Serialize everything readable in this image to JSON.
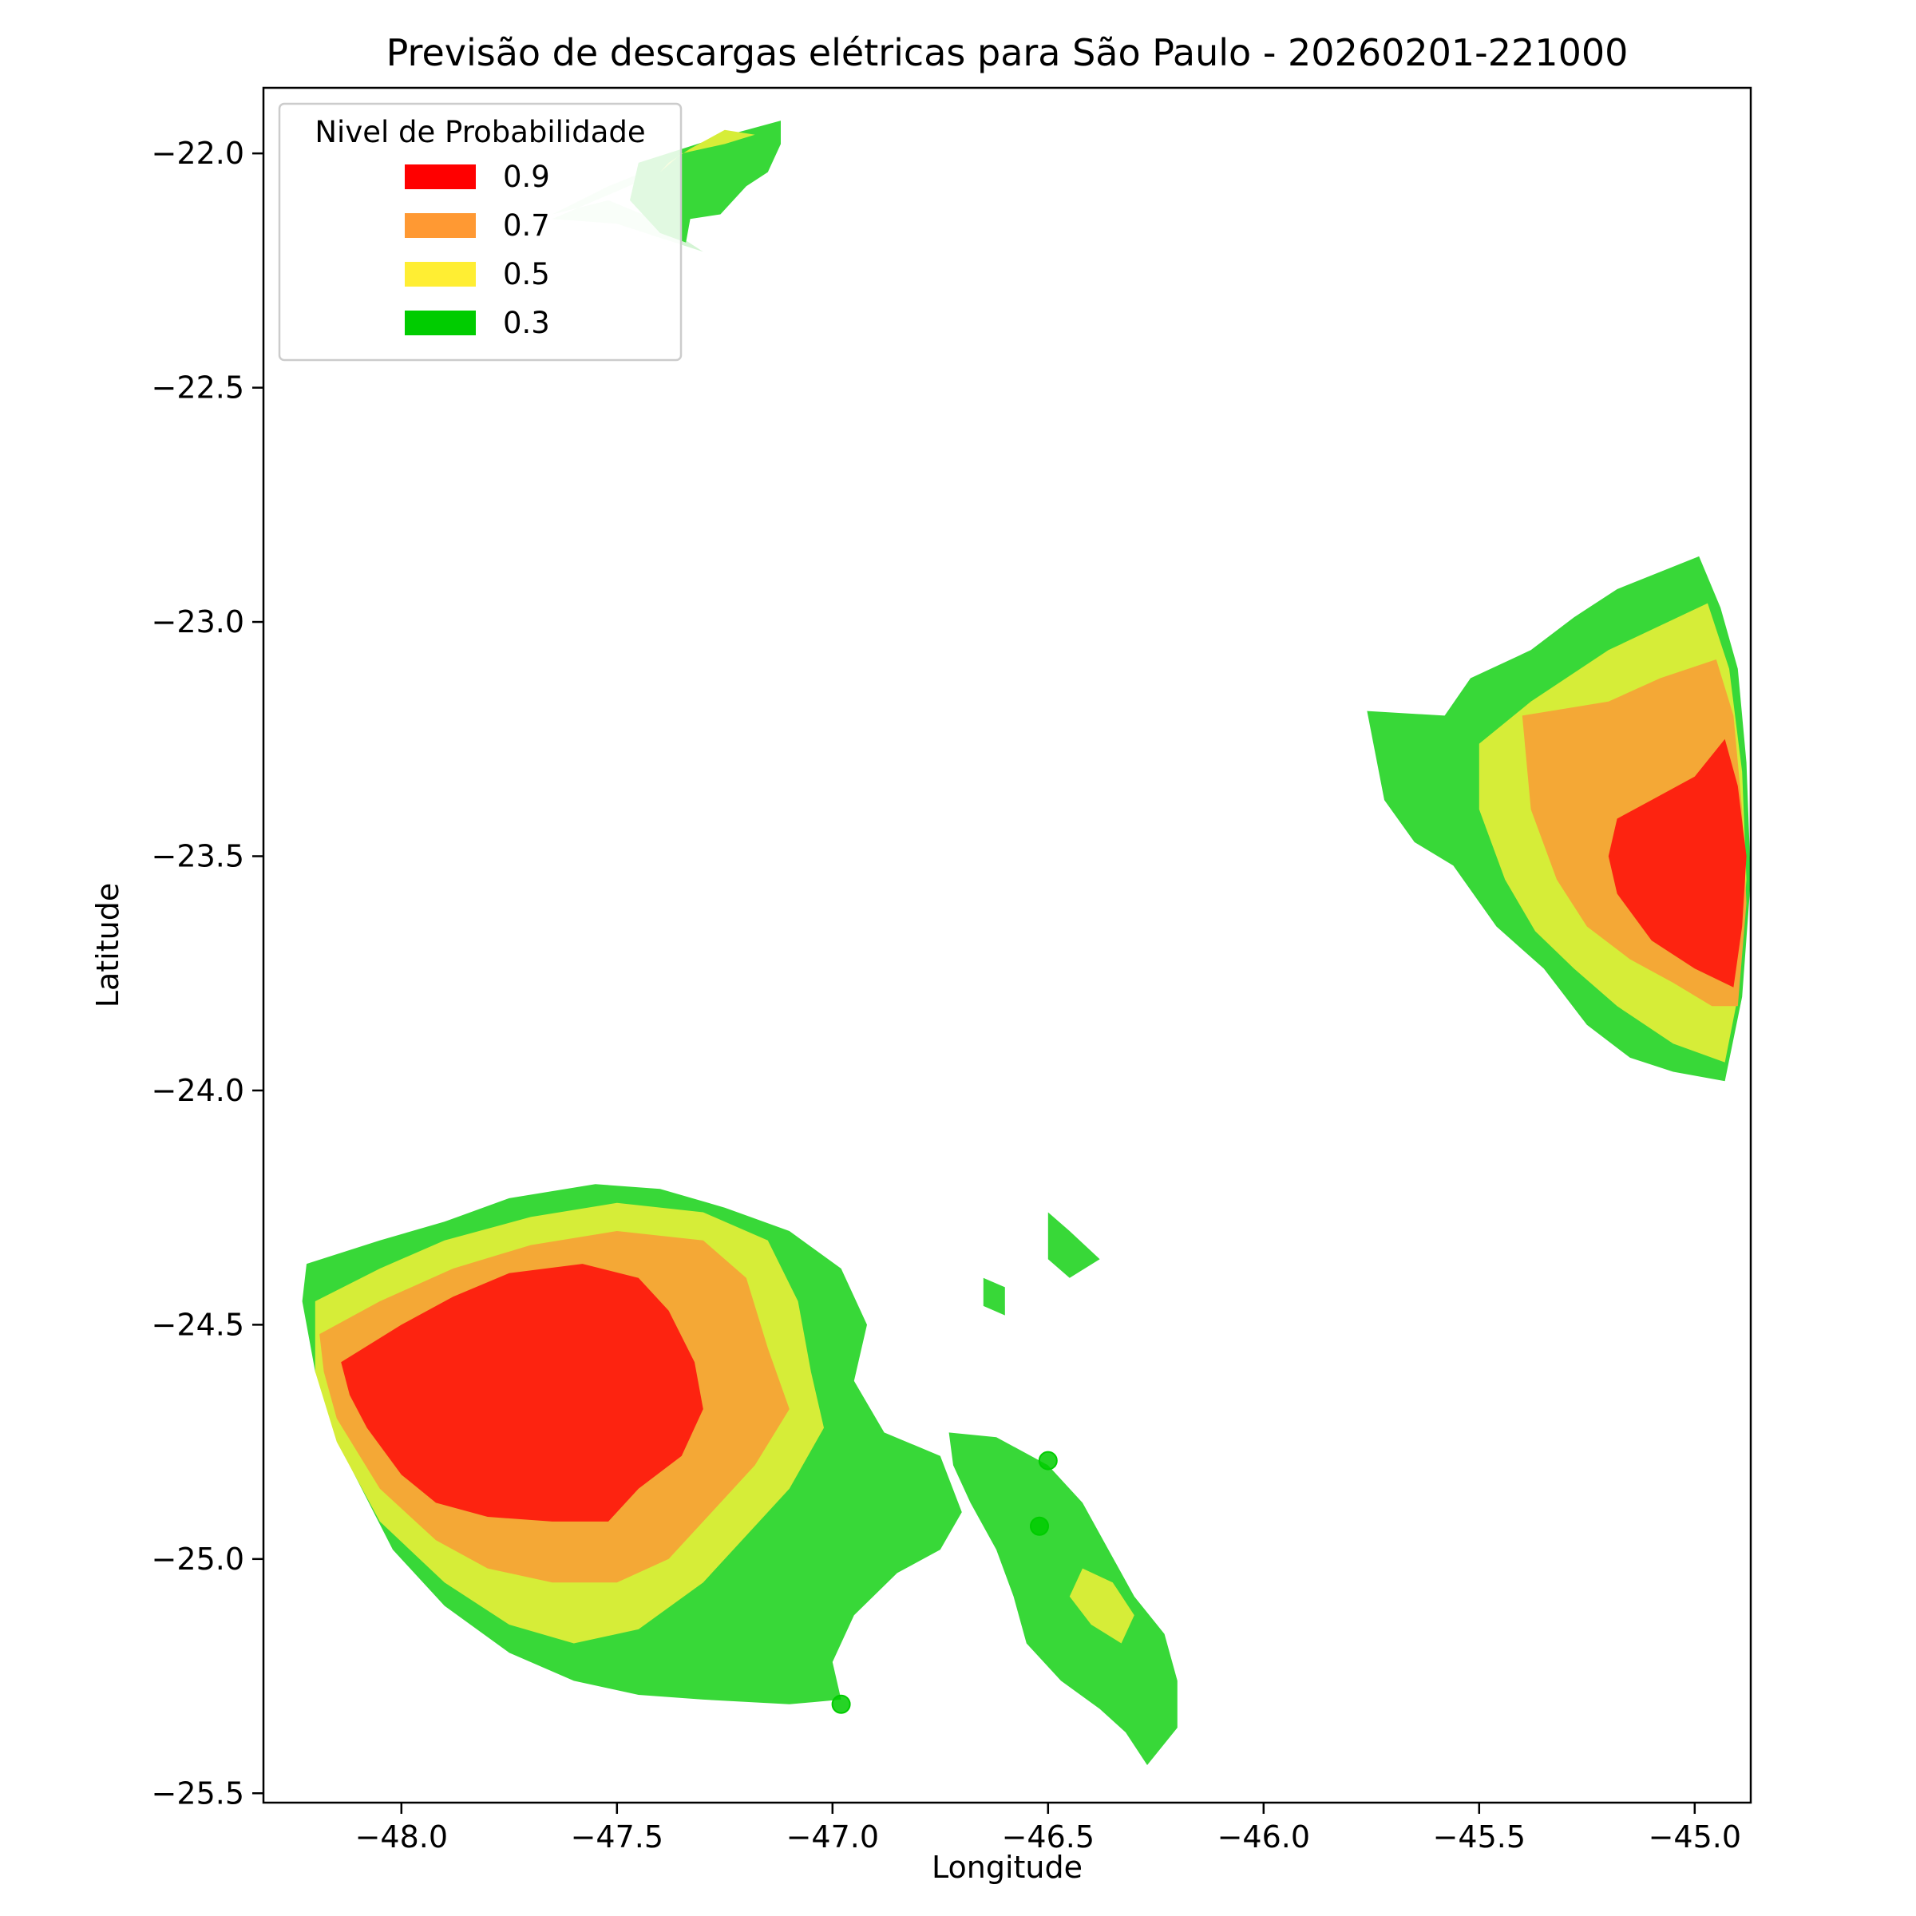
{
  "chart_data": {
    "type": "contour",
    "title": "Previsão de descargas elétricas para São Paulo - 20260201-221000",
    "xlabel": "Longitude",
    "ylabel": "Latitude",
    "xlim": [
      -48.32,
      -44.87
    ],
    "ylim": [
      -25.52,
      -21.86
    ],
    "xticks": [
      -48.0,
      -47.5,
      -47.0,
      -46.5,
      -46.0,
      -45.5,
      -45.0
    ],
    "xtick_labels": [
      "−48.0",
      "−47.5",
      "−47.0",
      "−46.5",
      "−46.0",
      "−45.5",
      "−45.0"
    ],
    "yticks": [
      -22.0,
      -22.5,
      -23.0,
      -23.5,
      -24.0,
      -24.5,
      -25.0,
      -25.5
    ],
    "ytick_labels": [
      "−22.0",
      "−22.5",
      "−23.0",
      "−23.5",
      "−24.0",
      "−24.5",
      "−25.0",
      "−25.5"
    ],
    "grid": false,
    "legend": {
      "title": "Nivel de Probabilidade",
      "placement": "top-left",
      "entries": [
        {
          "label": "0.9",
          "color": "#ff0000"
        },
        {
          "label": "0.7",
          "color": "#ff9933"
        },
        {
          "label": "0.5",
          "color": "#ffee33"
        },
        {
          "label": "0.3",
          "color": "#00cc00"
        }
      ]
    },
    "fill_colors": {
      "0.9": "#fd2310",
      "0.7": "#f4a836",
      "0.5": "#d6ed38",
      "0.3": "#38d838",
      "0.3_faded": "#d4f4d4"
    },
    "regions": [
      {
        "name": "northwest",
        "level": 0.3,
        "faded": true,
        "polygon": [
          [
            -47.12,
            -21.93
          ],
          [
            -47.33,
            -22.0
          ],
          [
            -47.52,
            -22.07
          ],
          [
            -47.65,
            -22.13
          ],
          [
            -47.52,
            -22.1
          ],
          [
            -47.44,
            -22.13
          ],
          [
            -47.35,
            -22.18
          ],
          [
            -47.3,
            -22.21
          ],
          [
            -47.5,
            -22.15
          ],
          [
            -47.65,
            -22.14
          ]
        ]
      },
      {
        "name": "northwest",
        "level": 0.3,
        "faded": false,
        "polygon": [
          [
            -47.12,
            -21.93
          ],
          [
            -47.28,
            -21.97
          ],
          [
            -47.45,
            -22.02
          ],
          [
            -47.47,
            -22.1
          ],
          [
            -47.4,
            -22.17
          ],
          [
            -47.34,
            -22.19
          ],
          [
            -47.33,
            -22.14
          ],
          [
            -47.26,
            -22.13
          ],
          [
            -47.2,
            -22.07
          ],
          [
            -47.15,
            -22.04
          ],
          [
            -47.12,
            -21.98
          ]
        ]
      },
      {
        "name": "northwest",
        "level": 0.5,
        "faded": false,
        "polygon": [
          [
            -47.4,
            -22.04
          ],
          [
            -47.35,
            -22.0
          ],
          [
            -47.25,
            -21.98
          ],
          [
            -47.18,
            -21.96
          ],
          [
            -47.25,
            -21.95
          ],
          [
            -47.33,
            -21.99
          ],
          [
            -47.38,
            -22.02
          ]
        ]
      },
      {
        "name": "east",
        "level": 0.3,
        "faded": false,
        "polygon": [
          [
            -45.76,
            -23.19
          ],
          [
            -45.58,
            -23.2
          ],
          [
            -45.52,
            -23.12
          ],
          [
            -45.38,
            -23.06
          ],
          [
            -45.28,
            -22.99
          ],
          [
            -45.18,
            -22.93
          ],
          [
            -44.99,
            -22.86
          ],
          [
            -44.94,
            -22.97
          ],
          [
            -44.9,
            -23.1
          ],
          [
            -44.88,
            -23.3
          ],
          [
            -44.87,
            -23.55
          ],
          [
            -44.89,
            -23.8
          ],
          [
            -44.93,
            -23.98
          ],
          [
            -45.05,
            -23.96
          ],
          [
            -45.15,
            -23.93
          ],
          [
            -45.25,
            -23.86
          ],
          [
            -45.35,
            -23.74
          ],
          [
            -45.46,
            -23.65
          ],
          [
            -45.56,
            -23.52
          ],
          [
            -45.65,
            -23.47
          ],
          [
            -45.72,
            -23.38
          ]
        ]
      },
      {
        "name": "east",
        "level": 0.5,
        "faded": false,
        "polygon": [
          [
            -45.5,
            -23.26
          ],
          [
            -45.38,
            -23.17
          ],
          [
            -45.2,
            -23.06
          ],
          [
            -44.97,
            -22.96
          ],
          [
            -44.92,
            -23.1
          ],
          [
            -44.89,
            -23.32
          ],
          [
            -44.88,
            -23.55
          ],
          [
            -44.9,
            -23.8
          ],
          [
            -44.93,
            -23.94
          ],
          [
            -45.05,
            -23.9
          ],
          [
            -45.18,
            -23.82
          ],
          [
            -45.28,
            -23.74
          ],
          [
            -45.37,
            -23.66
          ],
          [
            -45.44,
            -23.55
          ],
          [
            -45.5,
            -23.4
          ]
        ]
      },
      {
        "name": "east",
        "level": 0.7,
        "faded": false,
        "polygon": [
          [
            -45.4,
            -23.2
          ],
          [
            -45.2,
            -23.17
          ],
          [
            -45.08,
            -23.12
          ],
          [
            -44.95,
            -23.08
          ],
          [
            -44.91,
            -23.2
          ],
          [
            -44.89,
            -23.4
          ],
          [
            -44.88,
            -23.6
          ],
          [
            -44.9,
            -23.82
          ],
          [
            -44.96,
            -23.82
          ],
          [
            -45.05,
            -23.77
          ],
          [
            -45.15,
            -23.72
          ],
          [
            -45.25,
            -23.65
          ],
          [
            -45.32,
            -23.55
          ],
          [
            -45.38,
            -23.4
          ]
        ]
      },
      {
        "name": "east",
        "level": 0.9,
        "faded": false,
        "polygon": [
          [
            -45.18,
            -23.42
          ],
          [
            -45.1,
            -23.38
          ],
          [
            -45.0,
            -23.33
          ],
          [
            -44.93,
            -23.25
          ],
          [
            -44.9,
            -23.35
          ],
          [
            -44.88,
            -23.5
          ],
          [
            -44.89,
            -23.65
          ],
          [
            -44.91,
            -23.78
          ],
          [
            -45.0,
            -23.74
          ],
          [
            -45.1,
            -23.68
          ],
          [
            -45.18,
            -23.58
          ],
          [
            -45.2,
            -23.5
          ]
        ]
      },
      {
        "name": "southwest",
        "level": 0.3,
        "faded": false,
        "polygon": [
          [
            -48.22,
            -24.37
          ],
          [
            -48.05,
            -24.32
          ],
          [
            -47.9,
            -24.28
          ],
          [
            -47.75,
            -24.23
          ],
          [
            -47.55,
            -24.2
          ],
          [
            -47.4,
            -24.21
          ],
          [
            -47.25,
            -24.25
          ],
          [
            -47.1,
            -24.3
          ],
          [
            -46.98,
            -24.38
          ],
          [
            -46.92,
            -24.5
          ],
          [
            -46.95,
            -24.62
          ],
          [
            -46.88,
            -24.73
          ],
          [
            -46.75,
            -24.78
          ],
          [
            -46.7,
            -24.9
          ],
          [
            -46.75,
            -24.98
          ],
          [
            -46.85,
            -25.03
          ],
          [
            -46.95,
            -25.12
          ],
          [
            -47.0,
            -25.22
          ],
          [
            -46.98,
            -25.3
          ],
          [
            -47.1,
            -25.31
          ],
          [
            -47.3,
            -25.3
          ],
          [
            -47.45,
            -25.29
          ],
          [
            -47.6,
            -25.26
          ],
          [
            -47.75,
            -25.2
          ],
          [
            -47.9,
            -25.1
          ],
          [
            -48.02,
            -24.98
          ],
          [
            -48.12,
            -24.8
          ],
          [
            -48.2,
            -24.6
          ],
          [
            -48.23,
            -24.45
          ]
        ]
      },
      {
        "name": "southwest",
        "level": 0.5,
        "faded": false,
        "polygon": [
          [
            -48.2,
            -24.45
          ],
          [
            -48.05,
            -24.38
          ],
          [
            -47.9,
            -24.32
          ],
          [
            -47.7,
            -24.27
          ],
          [
            -47.5,
            -24.24
          ],
          [
            -47.3,
            -24.26
          ],
          [
            -47.15,
            -24.32
          ],
          [
            -47.08,
            -24.45
          ],
          [
            -47.05,
            -24.6
          ],
          [
            -47.02,
            -24.72
          ],
          [
            -47.1,
            -24.85
          ],
          [
            -47.2,
            -24.95
          ],
          [
            -47.3,
            -25.05
          ],
          [
            -47.45,
            -25.15
          ],
          [
            -47.6,
            -25.18
          ],
          [
            -47.75,
            -25.14
          ],
          [
            -47.9,
            -25.05
          ],
          [
            -48.05,
            -24.92
          ],
          [
            -48.15,
            -24.75
          ],
          [
            -48.2,
            -24.6
          ]
        ]
      },
      {
        "name": "southwest",
        "level": 0.7,
        "faded": false,
        "polygon": [
          [
            -48.19,
            -24.52
          ],
          [
            -48.05,
            -24.45
          ],
          [
            -47.88,
            -24.38
          ],
          [
            -47.7,
            -24.33
          ],
          [
            -47.5,
            -24.3
          ],
          [
            -47.3,
            -24.32
          ],
          [
            -47.2,
            -24.4
          ],
          [
            -47.15,
            -24.55
          ],
          [
            -47.1,
            -24.68
          ],
          [
            -47.18,
            -24.8
          ],
          [
            -47.28,
            -24.9
          ],
          [
            -47.38,
            -25.0
          ],
          [
            -47.5,
            -25.05
          ],
          [
            -47.65,
            -25.05
          ],
          [
            -47.8,
            -25.02
          ],
          [
            -47.92,
            -24.96
          ],
          [
            -48.05,
            -24.85
          ],
          [
            -48.15,
            -24.7
          ],
          [
            -48.18,
            -24.6
          ]
        ]
      },
      {
        "name": "southwest",
        "level": 0.9,
        "faded": false,
        "polygon": [
          [
            -48.14,
            -24.58
          ],
          [
            -48.0,
            -24.5
          ],
          [
            -47.88,
            -24.44
          ],
          [
            -47.75,
            -24.39
          ],
          [
            -47.58,
            -24.37
          ],
          [
            -47.45,
            -24.4
          ],
          [
            -47.38,
            -24.47
          ],
          [
            -47.32,
            -24.58
          ],
          [
            -47.3,
            -24.68
          ],
          [
            -47.35,
            -24.78
          ],
          [
            -47.45,
            -24.85
          ],
          [
            -47.52,
            -24.92
          ],
          [
            -47.65,
            -24.92
          ],
          [
            -47.8,
            -24.91
          ],
          [
            -47.92,
            -24.88
          ],
          [
            -48.0,
            -24.82
          ],
          [
            -48.08,
            -24.72
          ],
          [
            -48.12,
            -24.65
          ]
        ]
      },
      {
        "name": "coast",
        "level": 0.3,
        "faded": false,
        "polygon": [
          [
            -46.73,
            -24.73
          ],
          [
            -46.62,
            -24.74
          ],
          [
            -46.5,
            -24.8
          ],
          [
            -46.42,
            -24.88
          ],
          [
            -46.36,
            -24.98
          ],
          [
            -46.3,
            -25.08
          ],
          [
            -46.23,
            -25.16
          ],
          [
            -46.2,
            -25.26
          ],
          [
            -46.2,
            -25.36
          ],
          [
            -46.27,
            -25.44
          ],
          [
            -46.32,
            -25.37
          ],
          [
            -46.38,
            -25.32
          ],
          [
            -46.47,
            -25.26
          ],
          [
            -46.55,
            -25.18
          ],
          [
            -46.58,
            -25.08
          ],
          [
            -46.62,
            -24.98
          ],
          [
            -46.68,
            -24.88
          ],
          [
            -46.72,
            -24.8
          ]
        ]
      },
      {
        "name": "coast",
        "level": 0.5,
        "faded": false,
        "polygon": [
          [
            -46.42,
            -25.02
          ],
          [
            -46.35,
            -25.05
          ],
          [
            -46.3,
            -25.12
          ],
          [
            -46.33,
            -25.18
          ],
          [
            -46.4,
            -25.14
          ],
          [
            -46.45,
            -25.08
          ]
        ]
      },
      {
        "name": "nearshore",
        "level": 0.3,
        "faded": false,
        "polygon": [
          [
            -46.5,
            -24.26
          ],
          [
            -46.45,
            -24.3
          ],
          [
            -46.38,
            -24.36
          ],
          [
            -46.45,
            -24.4
          ],
          [
            -46.5,
            -24.36
          ]
        ]
      },
      {
        "name": "nearshore",
        "level": 0.3,
        "faded": false,
        "polygon": [
          [
            -46.65,
            -24.4
          ],
          [
            -46.6,
            -24.42
          ],
          [
            -46.6,
            -24.48
          ],
          [
            -46.65,
            -24.46
          ]
        ]
      }
    ],
    "markers": [
      {
        "lon": -46.52,
        "lat": -24.93,
        "color": "#00cc00"
      },
      {
        "lon": -46.98,
        "lat": -25.31,
        "color": "#00cc00"
      },
      {
        "lon": -46.5,
        "lat": -24.79,
        "color": "#00cc00"
      }
    ]
  }
}
